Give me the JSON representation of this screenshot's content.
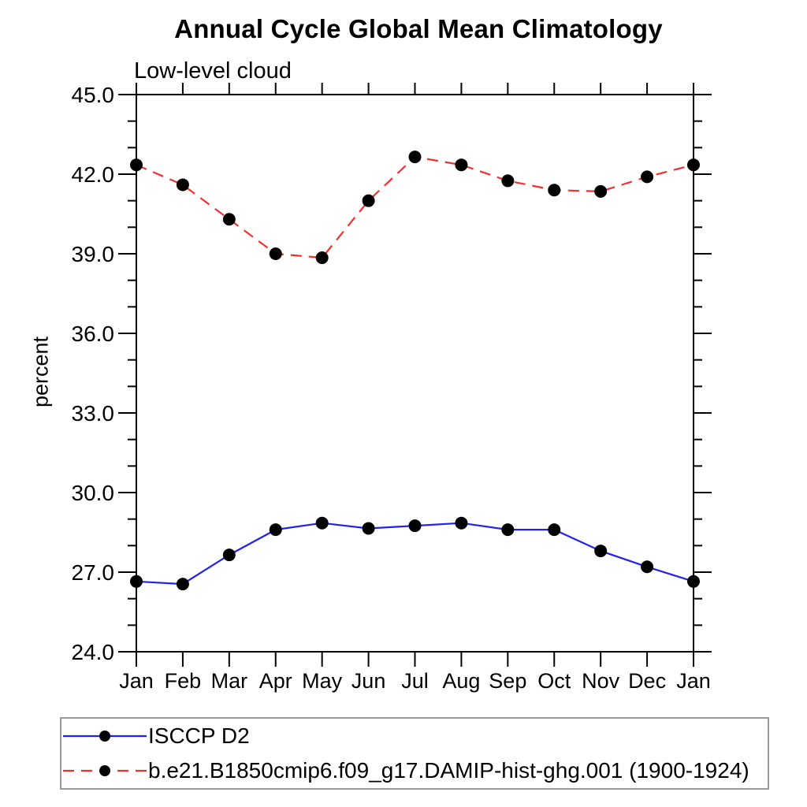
{
  "chart_data": {
    "type": "line",
    "title": "Annual Cycle Global Mean Climatology",
    "subtitle": "Low-level cloud",
    "ylabel": "percent",
    "xlabel": "",
    "categories": [
      "Jan",
      "Feb",
      "Mar",
      "Apr",
      "May",
      "Jun",
      "Jul",
      "Aug",
      "Sep",
      "Oct",
      "Nov",
      "Dec",
      "Jan"
    ],
    "ylim": [
      24.0,
      45.0
    ],
    "y_major_step": 3.0,
    "y_minor_step": 1.0,
    "y_tick_labels": [
      "24.0",
      "27.0",
      "30.0",
      "33.0",
      "36.0",
      "39.0",
      "42.0",
      "45.0"
    ],
    "grid": false,
    "legend_position": "bottom-left-box",
    "axis_color": "#000000",
    "marker_color": "#000000",
    "series": [
      {
        "name": "ISCCP D2",
        "color": "#2222ee",
        "style": "solid",
        "marker": "filled-circle",
        "values": [
          26.65,
          26.55,
          27.65,
          28.6,
          28.85,
          28.65,
          28.75,
          28.85,
          28.6,
          28.6,
          27.8,
          27.2,
          26.65
        ]
      },
      {
        "name": "b.e21.B1850cmip6.f09_g17.DAMIP-hist-ghg.001 (1900-1924)",
        "color": "#f23030",
        "style": "dashed",
        "marker": "filled-circle",
        "values": [
          42.35,
          41.6,
          40.3,
          39.0,
          38.85,
          41.0,
          42.65,
          42.35,
          41.75,
          41.4,
          41.35,
          41.9,
          42.35
        ]
      }
    ]
  }
}
